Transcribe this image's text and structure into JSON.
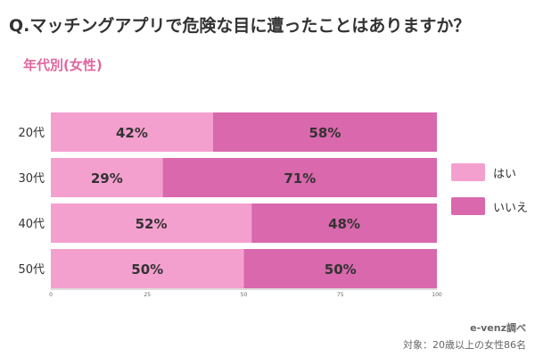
{
  "title": "Q.マッチングアプリで危険な目に遭ったことはありますか？",
  "subtitle": "年代別(女性)",
  "source": "e-venz調べ",
  "target": "対象：20歳以上の女性86名",
  "colors": {
    "yes": "#f4a0cf",
    "no": "#d968ac",
    "text": "#333333"
  },
  "chart_data": {
    "type": "bar",
    "orientation": "horizontal",
    "stacked": true,
    "categories": [
      "20代",
      "30代",
      "40代",
      "50代"
    ],
    "series": [
      {
        "name": "はい",
        "values": [
          42,
          29,
          52,
          50
        ],
        "color": "#f4a0cf"
      },
      {
        "name": "いいえ",
        "values": [
          58,
          71,
          48,
          50
        ],
        "color": "#d968ac"
      }
    ],
    "value_labels": [
      [
        "42%",
        "29%",
        "52%",
        "50%"
      ],
      [
        "58%",
        "71%",
        "48%",
        "50%"
      ]
    ],
    "xlim": [
      0,
      100
    ],
    "xticks": [
      "0",
      "25",
      "50",
      "75",
      "100"
    ],
    "legend_position": "right",
    "grid": false
  }
}
